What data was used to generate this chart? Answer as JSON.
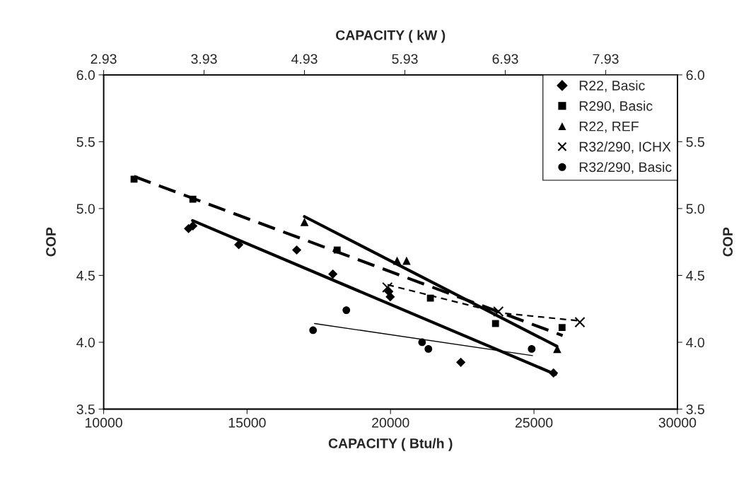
{
  "chart_data": {
    "type": "scatter",
    "xlabel": "CAPACITY ( Btu/h )",
    "ylabel": "COP",
    "y2label": "COP",
    "x2label": "CAPACITY ( kW )",
    "xlim": [
      10000,
      30000
    ],
    "xticks": [
      10000,
      15000,
      20000,
      25000,
      30000
    ],
    "ylim": [
      3.5,
      6.0
    ],
    "yticks": [
      {
        "value": 3.5,
        "label": "3.5"
      },
      {
        "value": 4.0,
        "label": "4.0"
      },
      {
        "value": 4.5,
        "label": "4.5"
      },
      {
        "value": 5.0,
        "label": "5.0"
      },
      {
        "value": 5.5,
        "label": "5.5"
      },
      {
        "value": 6.0,
        "label": "6.0"
      }
    ],
    "y2lim": [
      3.5,
      6.0
    ],
    "y2ticks": [
      {
        "value": 3.5,
        "label": "3.5"
      },
      {
        "value": 4.0,
        "label": "4.0"
      },
      {
        "value": 4.5,
        "label": "4.5"
      },
      {
        "value": 5.0,
        "label": "5.0"
      },
      {
        "value": 5.5,
        "label": "5.5"
      },
      {
        "value": 6.0,
        "label": "6.0"
      }
    ],
    "x2lim": [
      2.93,
      8.644
    ],
    "x2ticks": [
      2.93,
      3.93,
      4.93,
      5.93,
      6.93,
      7.93
    ],
    "grid": false,
    "legend": "top right",
    "series": [
      {
        "name": "R22, Basic",
        "marker": "diamond",
        "color": "#000000",
        "x": [
          12960,
          13110,
          14710,
          16730,
          17990,
          19940,
          19990,
          22450,
          25680
        ],
        "values": [
          4.85,
          4.87,
          4.73,
          4.69,
          4.51,
          4.38,
          4.34,
          3.85,
          3.77
        ]
      },
      {
        "name": "R290, Basic",
        "marker": "square",
        "color": "#000000",
        "x": [
          11060,
          13110,
          18140,
          21390,
          23660,
          25980
        ],
        "values": [
          5.22,
          5.07,
          4.69,
          4.33,
          4.14,
          4.11
        ]
      },
      {
        "name": "R22, REF",
        "marker": "triangle",
        "color": "#000000",
        "x": [
          17000,
          20230,
          20560,
          25810
        ],
        "values": [
          4.9,
          4.61,
          4.61,
          3.95
        ]
      },
      {
        "name": "R32/290, ICHX",
        "marker": "cross",
        "color": "#000000",
        "x": [
          19890,
          23760,
          26600
        ],
        "values": [
          4.41,
          4.23,
          4.15
        ]
      },
      {
        "name": "R32/290, Basic",
        "marker": "circle",
        "color": "#000000",
        "x": [
          17300,
          18460,
          21100,
          21320,
          24920
        ],
        "values": [
          4.09,
          4.24,
          4.0,
          3.95,
          3.95
        ]
      },
      {
        "type": "line",
        "line_style": "solid",
        "color": "#000000",
        "x": [
          13100,
          25750
        ],
        "values": [
          4.91,
          3.76
        ]
      },
      {
        "type": "line",
        "line_style": "dashed",
        "color": "#000000",
        "x": [
          11060,
          26000
        ],
        "values": [
          5.24,
          4.05
        ]
      },
      {
        "type": "line",
        "line_style": "solid",
        "color": "#000000",
        "x": [
          17000,
          25800
        ],
        "values": [
          4.94,
          3.97
        ]
      },
      {
        "type": "line",
        "line_style": "dashed",
        "color": "#000000",
        "x": [
          19900,
          23800,
          26600
        ],
        "values": [
          4.43,
          4.22,
          4.16
        ]
      },
      {
        "type": "line",
        "line_style": "solid",
        "color": "#000000",
        "x": [
          17350,
          24950
        ],
        "values": [
          4.14,
          3.9
        ]
      }
    ]
  }
}
